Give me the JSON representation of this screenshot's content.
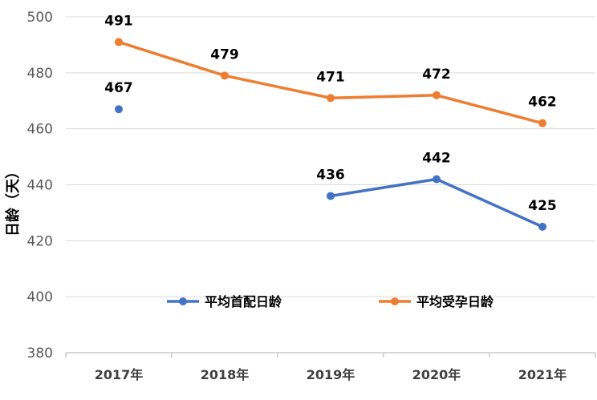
{
  "chart_data": {
    "type": "line",
    "title": "",
    "xlabel": "",
    "ylabel": "日龄（天）",
    "categories": [
      "2017年",
      "2018年",
      "2019年",
      "2020年",
      "2021年"
    ],
    "ylim": [
      380,
      500
    ],
    "yticks": [
      380,
      400,
      420,
      440,
      460,
      480,
      500
    ],
    "grid": "horizontal",
    "legend": "bottom-center",
    "series": [
      {
        "name": "平均首配日龄",
        "color": "#4472C4",
        "values": [
          467,
          null,
          436,
          442,
          425
        ]
      },
      {
        "name": "平均受孕日龄",
        "color": "#ED7D31",
        "values": [
          491,
          479,
          471,
          472,
          462
        ]
      }
    ]
  }
}
